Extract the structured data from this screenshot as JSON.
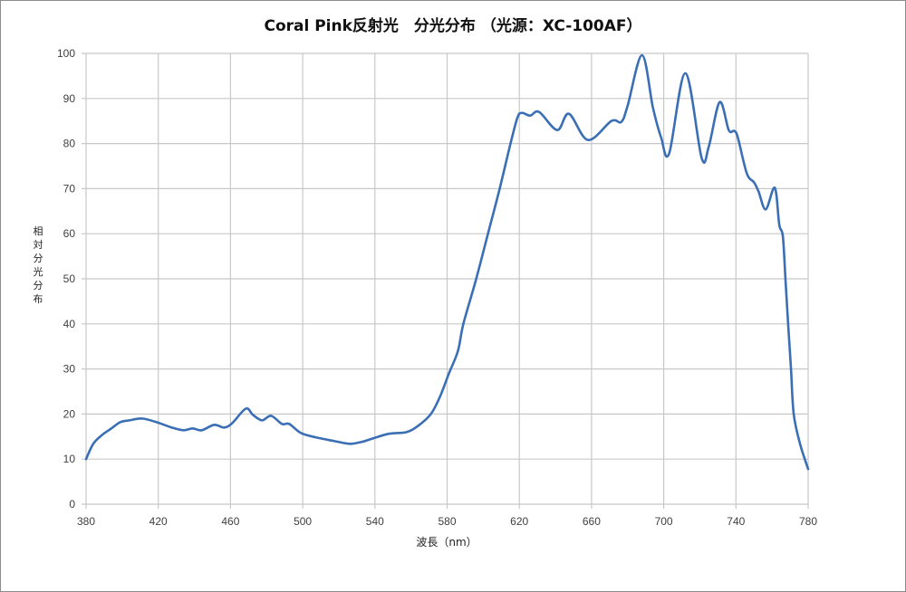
{
  "chart_data": {
    "type": "line",
    "title": "Coral Pink反射光　分光分布 （光源：XC-100AF）",
    "xlabel": "波長（nm）",
    "ylabel": "相対分光分布",
    "xlim": [
      380,
      780
    ],
    "ylim": [
      0,
      100
    ],
    "x_ticks": [
      380,
      420,
      460,
      500,
      540,
      580,
      620,
      660,
      700,
      740,
      780
    ],
    "y_ticks": [
      0,
      10,
      20,
      30,
      40,
      50,
      60,
      70,
      80,
      90,
      100
    ],
    "grid": true,
    "legend": null,
    "line_color": "#3a6fb5",
    "series": [
      {
        "name": "Coral Pink反射光",
        "x": [
          380,
          384,
          389,
          394,
          399,
          404,
          411,
          419,
          427.5,
          434,
          439,
          444,
          451,
          456.5,
          461,
          468.5,
          472.5,
          477.5,
          482.5,
          488.5,
          492.5,
          499,
          507.5,
          517.5,
          526,
          532.5,
          539,
          547.5,
          557.5,
          564,
          571,
          576,
          581,
          586,
          589,
          596,
          602.5,
          609,
          615,
          619,
          621.5,
          626,
          631,
          641,
          647.5,
          658,
          671,
          676.5,
          680,
          688,
          694,
          698.5,
          703,
          712,
          721,
          725,
          731,
          736,
          739,
          741,
          746,
          750,
          752.5,
          756.5,
          761.5,
          764,
          766,
          767.5,
          769,
          770.5,
          772,
          775.5,
          780
        ],
        "y": [
          10,
          13.4,
          15.4,
          16.8,
          18.2,
          18.6,
          19,
          18.2,
          17,
          16.4,
          16.8,
          16.4,
          17.6,
          17,
          18,
          21.2,
          19.8,
          18.6,
          19.6,
          17.8,
          17.8,
          15.8,
          14.8,
          14,
          13.4,
          13.8,
          14.6,
          15.6,
          16,
          17.4,
          20,
          23.8,
          29,
          34,
          40,
          49.8,
          59.8,
          69.8,
          79.8,
          85.8,
          86.8,
          86.2,
          87,
          83,
          86.6,
          80.8,
          85,
          84.8,
          88.4,
          99.6,
          88,
          81.4,
          77.8,
          95.6,
          76.8,
          79.4,
          89.2,
          83,
          82.8,
          81.4,
          73.4,
          71.4,
          69.4,
          65.4,
          70.2,
          62,
          59.4,
          49.4,
          39.4,
          30,
          20,
          13.4,
          7.8
        ]
      }
    ]
  }
}
